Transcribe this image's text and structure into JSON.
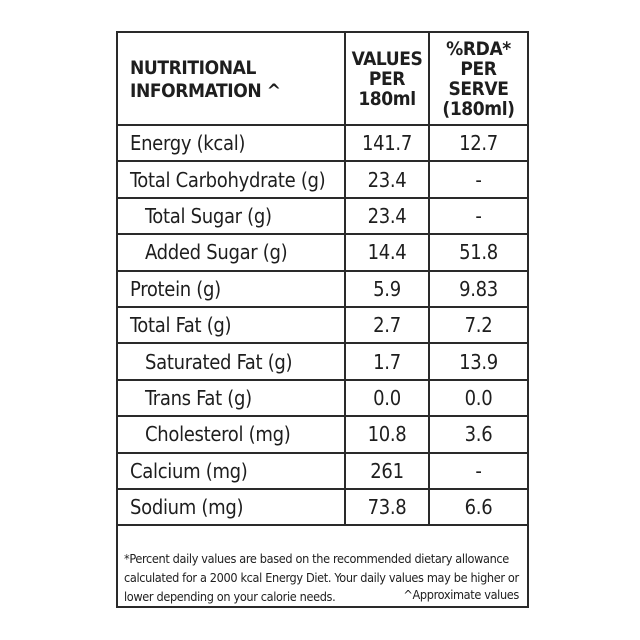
{
  "table": {
    "header": {
      "col1_line1": "NUTRITIONAL",
      "col1_line2": "INFORMATION ^",
      "col2_line1": "VALUES",
      "col2_line2": "PER",
      "col2_line3": "180ml",
      "col3_line1": "%RDA*",
      "col3_line2": "PER SERVE",
      "col3_line3": "(180ml)"
    },
    "rows": [
      {
        "name": "Energy (kcal)",
        "value": "141.7",
        "rda": "12.7"
      },
      {
        "name": "Total Carbohydrate (g)",
        "value": "23.4",
        "rda": "-"
      },
      {
        "name": "Total Sugar (g)",
        "value": "23.4",
        "rda": "-"
      },
      {
        "name": "Added Sugar (g)",
        "value": "14.4",
        "rda": "51.8"
      },
      {
        "name": "Protein (g)",
        "value": "5.9",
        "rda": "9.83"
      },
      {
        "name": "Total Fat (g)",
        "value": "2.7",
        "rda": "7.2"
      },
      {
        "name": "Saturated Fat (g)",
        "value": "1.7",
        "rda": "13.9"
      },
      {
        "name": "Trans Fat (g)",
        "value": "0.0",
        "rda": "0.0"
      },
      {
        "name": "Cholesterol (mg)",
        "value": "10.8",
        "rda": "3.6"
      },
      {
        "name": "Calcium (mg)",
        "value": "261",
        "rda": "-"
      },
      {
        "name": "Sodium (mg)",
        "value": "73.8",
        "rda": "6.6"
      }
    ]
  },
  "footnote": {
    "line1": "*Percent daily values are based on the recommended dietary allowance",
    "line2": "calculated for a 2000 kcal Energy Diet. Your daily values may be higher or",
    "line3": "lower depending on your calorie needs.",
    "approx": "^Approximate values"
  }
}
